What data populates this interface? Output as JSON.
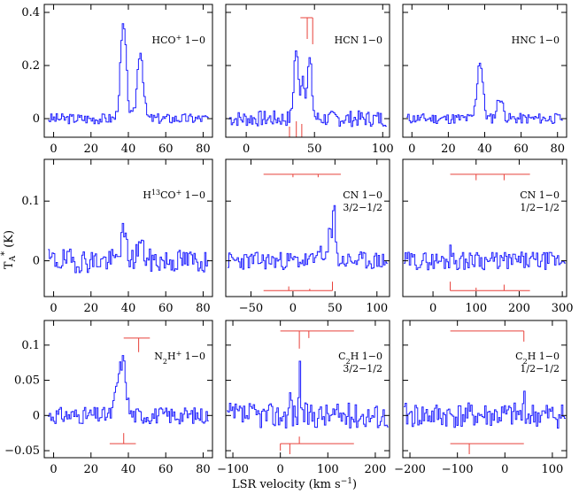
{
  "figure": {
    "xlabel_main": "LSR velocity (km s",
    "xlabel_sup": "−1",
    "xlabel_end": ")",
    "ylabel_main": "T",
    "ylabel_sub": "A",
    "ylabel_sup": "*",
    "ylabel_end": " (K)"
  },
  "chart_data": [
    {
      "type": "line",
      "id": "hco",
      "label_parts": [
        [
          "HCO",
          ""
        ],
        [
          "+",
          "sup"
        ],
        [
          " 1−0",
          ""
        ]
      ],
      "xlim": [
        -5,
        85
      ],
      "ylim": [
        -0.07,
        0.43
      ],
      "xticks": [
        0,
        20,
        40,
        60,
        80
      ],
      "yticks": [
        0,
        0.2,
        0.4
      ],
      "ytick_labels": [
        "0",
        "0.2",
        "0.4"
      ],
      "peaks": [
        [
          37,
          0.35
        ],
        [
          46,
          0.26
        ]
      ],
      "noise": 0.02,
      "seed": 3,
      "hfs_top": null,
      "hfs_bot": null
    },
    {
      "type": "line",
      "id": "hcn",
      "label_parts": [
        [
          "HCN 1−0",
          ""
        ]
      ],
      "xlim": [
        -15,
        105
      ],
      "ylim": [
        -0.07,
        0.43
      ],
      "xticks": [
        0,
        50,
        100
      ],
      "yticks": [
        0,
        0.2,
        0.4
      ],
      "peaks": [
        [
          36,
          0.26
        ],
        [
          41,
          0.16
        ],
        [
          46,
          0.22
        ]
      ],
      "noise": 0.03,
      "seed": 7,
      "hfs_top": {
        "y": 0.38,
        "comps": [
          [
            39.7,
            0.38
          ],
          [
            44.7,
            0.3
          ],
          [
            48.7,
            0.28
          ]
        ]
      },
      "hfs_bot": {
        "y": -0.07,
        "comps": [
          [
            31.7,
            -0.03
          ],
          [
            36.7,
            -0.01
          ],
          [
            40.7,
            -0.02
          ]
        ]
      }
    },
    {
      "type": "line",
      "id": "hnc",
      "label_parts": [
        [
          "HNC 1−0",
          ""
        ]
      ],
      "xlim": [
        -5,
        85
      ],
      "ylim": [
        -0.07,
        0.43
      ],
      "xticks": [
        0,
        20,
        40,
        60,
        80
      ],
      "yticks": [
        0,
        0.2,
        0.4
      ],
      "peaks": [
        [
          37,
          0.22
        ],
        [
          48,
          0.08
        ]
      ],
      "noise": 0.02,
      "seed": 11,
      "hfs_top": null,
      "hfs_bot": null
    },
    {
      "type": "line",
      "id": "h13co",
      "label_parts": [
        [
          "H",
          ""
        ],
        [
          "13",
          "sup"
        ],
        [
          "CO",
          ""
        ],
        [
          "+",
          "sup"
        ],
        [
          " 1−0",
          ""
        ]
      ],
      "xlim": [
        -5,
        85
      ],
      "ylim": [
        -0.06,
        0.17
      ],
      "xticks": [
        0,
        20,
        40,
        60,
        80
      ],
      "yticks": [
        0,
        0.1
      ],
      "peaks": [
        [
          37,
          0.045
        ],
        [
          46,
          0.03
        ]
      ],
      "noise": 0.02,
      "seed": 19,
      "hfs_top": null,
      "hfs_bot": null
    },
    {
      "type": "line",
      "id": "cn32",
      "label_parts": [
        [
          "CN 1−0",
          ""
        ]
      ],
      "label2": "3/2−1/2",
      "xlim": [
        -80,
        115
      ],
      "ylim": [
        -0.06,
        0.17
      ],
      "xticks": [
        -50,
        0,
        50,
        100
      ],
      "yticks": [
        0,
        0.1
      ],
      "peaks": [
        [
          48,
          0.11
        ],
        [
          43,
          0.05
        ],
        [
          30,
          0.03
        ]
      ],
      "noise": 0.015,
      "seed": 23,
      "hfs_top": {
        "y": 0.145,
        "comps": [
          [
            -35,
            0.145
          ],
          [
            0,
            0.14
          ],
          [
            30,
            0.14
          ],
          [
            57,
            0.145
          ]
        ]
      },
      "hfs_bot": {
        "y": -0.05,
        "comps": [
          [
            -35,
            -0.05
          ],
          [
            -5,
            -0.043
          ],
          [
            20,
            -0.047
          ],
          [
            47,
            -0.035
          ]
        ]
      }
    },
    {
      "type": "line",
      "id": "cn12",
      "label_parts": [
        [
          "CN 1−0",
          ""
        ]
      ],
      "label2": "1/2−1/2",
      "xlim": [
        -70,
        310
      ],
      "ylim": [
        -0.06,
        0.17
      ],
      "xticks": [
        0,
        100,
        200,
        300
      ],
      "yticks": [
        0,
        0.1
      ],
      "peaks": [
        [
          40,
          0.04
        ],
        [
          100,
          0.03
        ]
      ],
      "noise": 0.015,
      "seed": 29,
      "hfs_top": {
        "y": 0.145,
        "comps": [
          [
            40,
            0.145
          ],
          [
            100,
            0.135
          ],
          [
            165,
            0.135
          ],
          [
            225,
            0.145
          ]
        ]
      },
      "hfs_bot": {
        "y": -0.05,
        "comps": [
          [
            40,
            -0.035
          ],
          [
            100,
            -0.045
          ],
          [
            165,
            -0.04
          ],
          [
            225,
            -0.05
          ]
        ]
      }
    },
    {
      "type": "line",
      "id": "n2h",
      "label_parts": [
        [
          "N",
          ""
        ],
        [
          "2",
          "sub"
        ],
        [
          "H",
          ""
        ],
        [
          "+",
          "sup"
        ],
        [
          " 1−0",
          ""
        ]
      ],
      "xlim": [
        -5,
        85
      ],
      "ylim": [
        -0.06,
        0.135
      ],
      "xticks": [
        0,
        20,
        40,
        60,
        80
      ],
      "yticks": [
        -0.05,
        0,
        0.05,
        0.1
      ],
      "ytick_labels": [
        "−0.05",
        "0",
        "0.05",
        "0.1"
      ],
      "peaks": [
        [
          37,
          0.07
        ],
        [
          34,
          0.04
        ]
      ],
      "noise": 0.012,
      "seed": 31,
      "hfs_top": {
        "y": 0.11,
        "comps": [
          [
            37.5,
            0.11
          ],
          [
            45.5,
            0.09
          ],
          [
            51.5,
            0.11
          ]
        ]
      },
      "hfs_bot": {
        "y": -0.04,
        "comps": [
          [
            30,
            -0.04
          ],
          [
            37.5,
            -0.025
          ],
          [
            44,
            -0.04
          ]
        ]
      }
    },
    {
      "type": "line",
      "id": "c2h32",
      "label_parts": [
        [
          "C",
          ""
        ],
        [
          "2",
          "sub"
        ],
        [
          "H 1−0",
          ""
        ]
      ],
      "label2": "3/2−1/2",
      "xlim": [
        -115,
        230
      ],
      "ylim": [
        -0.06,
        0.135
      ],
      "xticks": [
        -100,
        0,
        100,
        200
      ],
      "yticks": [
        -0.05,
        0,
        0.05,
        0.1
      ],
      "peaks": [
        [
          40,
          0.09
        ],
        [
          20,
          0.04
        ]
      ],
      "noise": 0.018,
      "seed": 37,
      "hfs_top": {
        "y": 0.12,
        "comps": [
          [
            0,
            0.12
          ],
          [
            40,
            0.095
          ],
          [
            60,
            0.11
          ],
          [
            155,
            0.12
          ]
        ]
      },
      "hfs_bot": {
        "y": -0.04,
        "comps": [
          [
            0,
            -0.05
          ],
          [
            20,
            -0.055
          ],
          [
            40,
            -0.03
          ],
          [
            155,
            -0.04
          ]
        ]
      }
    },
    {
      "type": "line",
      "id": "c2h12",
      "label_parts": [
        [
          "C",
          ""
        ],
        [
          "2",
          "sub"
        ],
        [
          "H 1−0",
          ""
        ]
      ],
      "label2": "1/2−1/2",
      "xlim": [
        -215,
        130
      ],
      "ylim": [
        -0.06,
        0.135
      ],
      "xticks": [
        -200,
        -100,
        0,
        100
      ],
      "yticks": [
        -0.05,
        0,
        0.05,
        0.1
      ],
      "peaks": [
        [
          40,
          0.03
        ]
      ],
      "noise": 0.018,
      "seed": 41,
      "hfs_top": {
        "y": 0.12,
        "comps": [
          [
            -115,
            0.12
          ],
          [
            40,
            0.105
          ]
        ]
      },
      "hfs_bot": {
        "y": -0.04,
        "comps": [
          [
            -115,
            -0.04
          ],
          [
            -75,
            -0.055
          ],
          [
            40,
            -0.04
          ]
        ]
      }
    }
  ]
}
